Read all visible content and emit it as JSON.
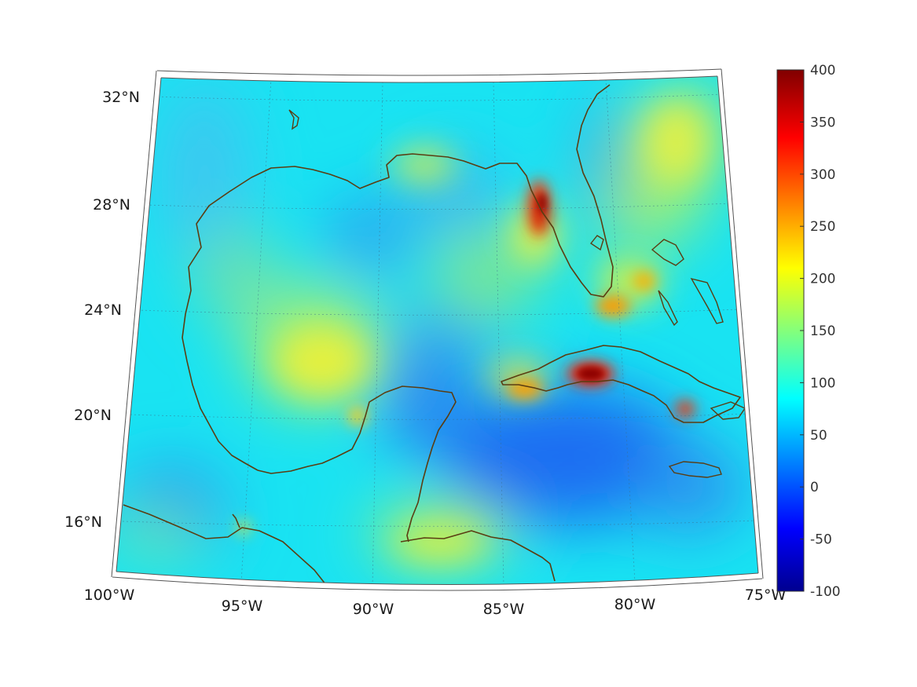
{
  "map": {
    "latitude_labels": [
      "32°N",
      "28°N",
      "24°N",
      "20°N",
      "16°N"
    ],
    "longitude_labels": [
      "100°W",
      "95°W",
      "90°W",
      "85°W",
      "80°W",
      "75°W"
    ],
    "coastline_color": "#5a3d12",
    "background_field_color": "#19e0f0"
  },
  "colorbar": {
    "ticks": [
      "400",
      "350",
      "300",
      "250",
      "200",
      "150",
      "100",
      "50",
      "0",
      "-50",
      "-100"
    ],
    "min": -100,
    "max": 400,
    "colormap": "jet"
  }
}
